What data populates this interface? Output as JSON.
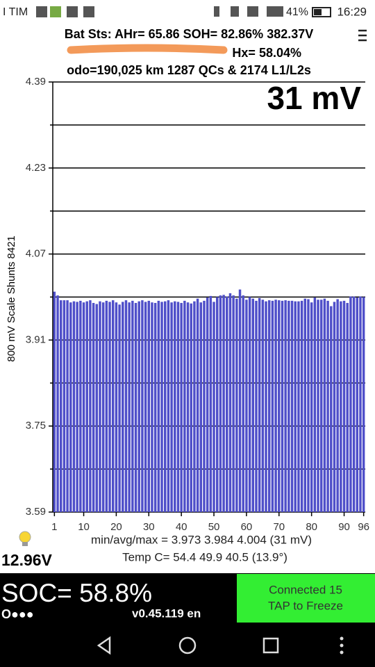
{
  "status_bar": {
    "carrier": "I TIM",
    "battery": "41%",
    "time": "16:29"
  },
  "header": {
    "line1": "Bat Sts: AHr= 65.86 SOH= 82.86% 382.37V",
    "line2": "Hx= 58.04%",
    "line3": "odo=190,025 km 1287 QCs & 2174 L1/L2s"
  },
  "chart_data": {
    "type": "bar",
    "annotation": "31 mV",
    "y_label": "800 mV Scale  Shunts 8421",
    "x": [
      1,
      2,
      3,
      4,
      5,
      6,
      7,
      8,
      9,
      10,
      11,
      12,
      13,
      14,
      15,
      16,
      17,
      18,
      19,
      20,
      21,
      22,
      23,
      24,
      25,
      26,
      27,
      28,
      29,
      30,
      31,
      32,
      33,
      34,
      35,
      36,
      37,
      38,
      39,
      40,
      41,
      42,
      43,
      44,
      45,
      46,
      47,
      48,
      49,
      50,
      51,
      52,
      53,
      54,
      55,
      56,
      57,
      58,
      59,
      60,
      61,
      62,
      63,
      64,
      65,
      66,
      67,
      68,
      69,
      70,
      71,
      72,
      73,
      74,
      75,
      76,
      77,
      78,
      79,
      80,
      81,
      82,
      83,
      84,
      85,
      86,
      87,
      88,
      89,
      90,
      91,
      92,
      93,
      94,
      95,
      96
    ],
    "values": [
      4.0,
      3.993,
      3.984,
      3.984,
      3.984,
      3.98,
      3.982,
      3.981,
      3.983,
      3.98,
      3.982,
      3.984,
      3.979,
      3.977,
      3.982,
      3.98,
      3.983,
      3.981,
      3.984,
      3.98,
      3.976,
      3.981,
      3.984,
      3.98,
      3.983,
      3.979,
      3.982,
      3.984,
      3.981,
      3.983,
      3.98,
      3.979,
      3.983,
      3.981,
      3.982,
      3.984,
      3.98,
      3.982,
      3.981,
      3.979,
      3.983,
      3.98,
      3.978,
      3.982,
      3.987,
      3.98,
      3.983,
      3.989,
      3.992,
      3.981,
      3.99,
      3.993,
      3.994,
      3.991,
      3.997,
      3.993,
      3.987,
      4.004,
      3.993,
      3.985,
      3.99,
      3.987,
      3.983,
      3.988,
      3.985,
      3.982,
      3.984,
      3.983,
      3.985,
      3.984,
      3.983,
      3.984,
      3.983,
      3.983,
      3.982,
      3.982,
      3.983,
      3.987,
      3.986,
      3.98,
      3.989,
      3.985,
      3.985,
      3.987,
      3.983,
      3.973,
      3.981,
      3.986,
      3.982,
      3.983,
      3.979,
      3.991,
      3.991,
      3.989,
      3.991,
      3.99
    ],
    "color": "#4f4fc9",
    "xlim": [
      0.5,
      96.5
    ],
    "xticks": [
      1,
      10,
      20,
      30,
      40,
      50,
      60,
      70,
      80,
      90,
      96
    ],
    "ylim": [
      3.59,
      4.39
    ],
    "yticks": [
      3.59,
      3.75,
      3.91,
      4.07,
      4.23,
      4.39
    ],
    "minor_yticks": [
      3.67,
      3.83,
      3.99,
      4.15,
      4.31
    ],
    "grid": true
  },
  "footer": {
    "stats": "min/avg/max = 3.973 3.984 4.004  (31 mV)",
    "temp": "Temp C= 54.4  49.9  40.5  (13.9°)",
    "aux_voltage": "12.96V",
    "soc": "SOC= 58.8%",
    "dots": "O●●●",
    "version": "v0.45.119 en",
    "connected": "Connected 15",
    "tap": "TAP to Freeze"
  }
}
